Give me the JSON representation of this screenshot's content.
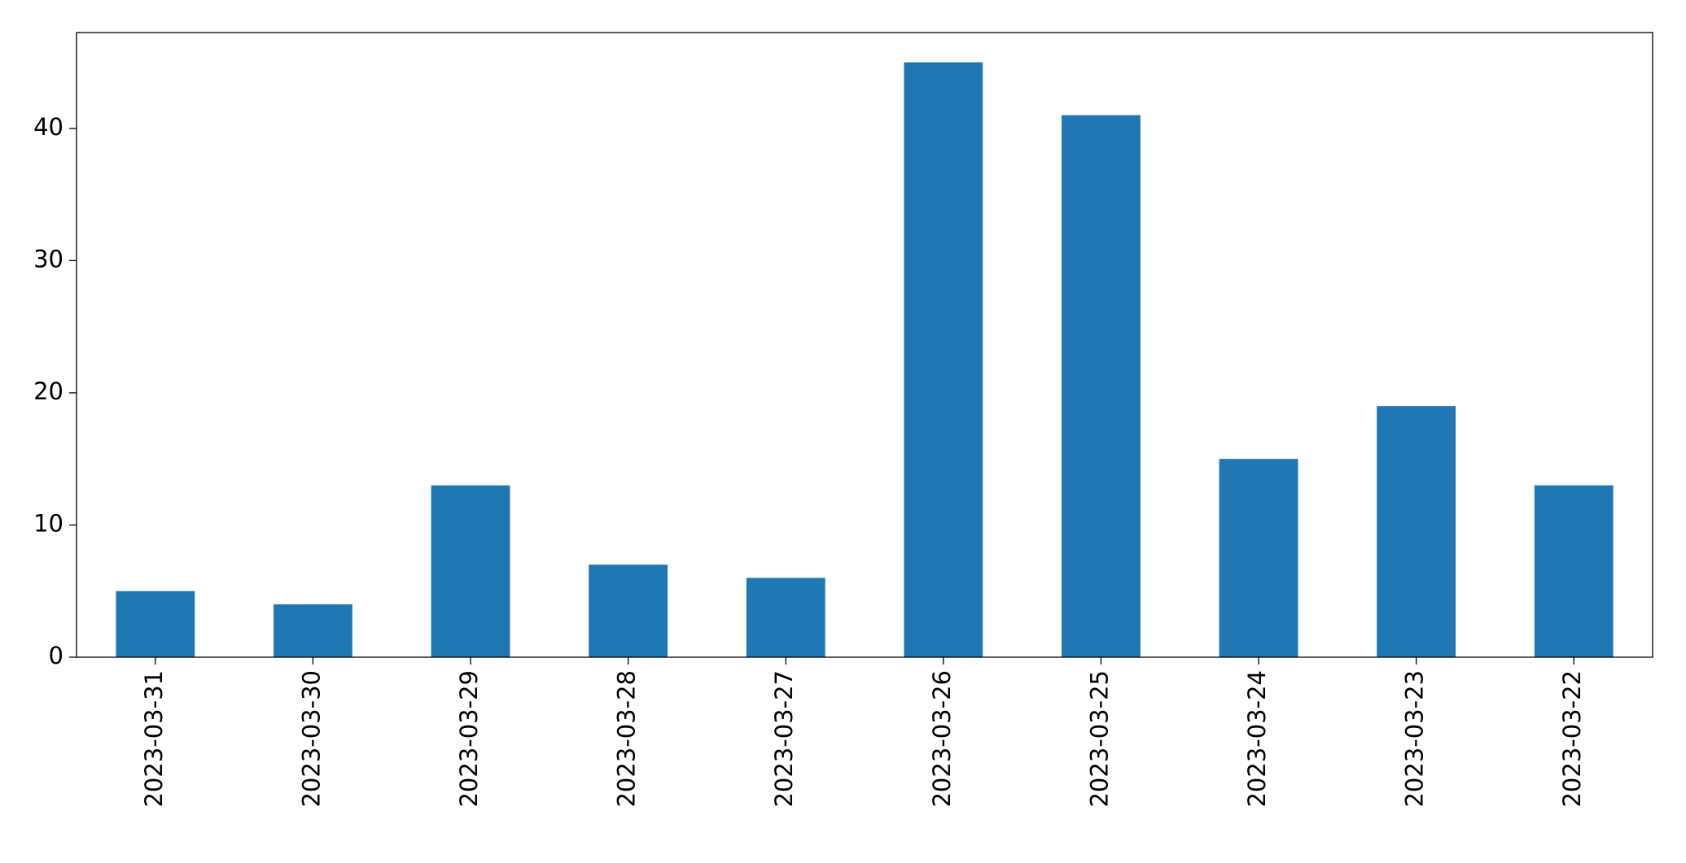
{
  "chart_data": {
    "type": "bar",
    "categories": [
      "2023-03-31",
      "2023-03-30",
      "2023-03-29",
      "2023-03-28",
      "2023-03-27",
      "2023-03-26",
      "2023-03-25",
      "2023-03-24",
      "2023-03-23",
      "2023-03-22"
    ],
    "values": [
      5,
      4,
      13,
      7,
      6,
      45,
      41,
      15,
      19,
      13
    ],
    "color": "#1f77b4",
    "ylim": [
      0,
      47.25
    ],
    "yticks": [
      0,
      10,
      20,
      30,
      40
    ],
    "grid": false
  }
}
